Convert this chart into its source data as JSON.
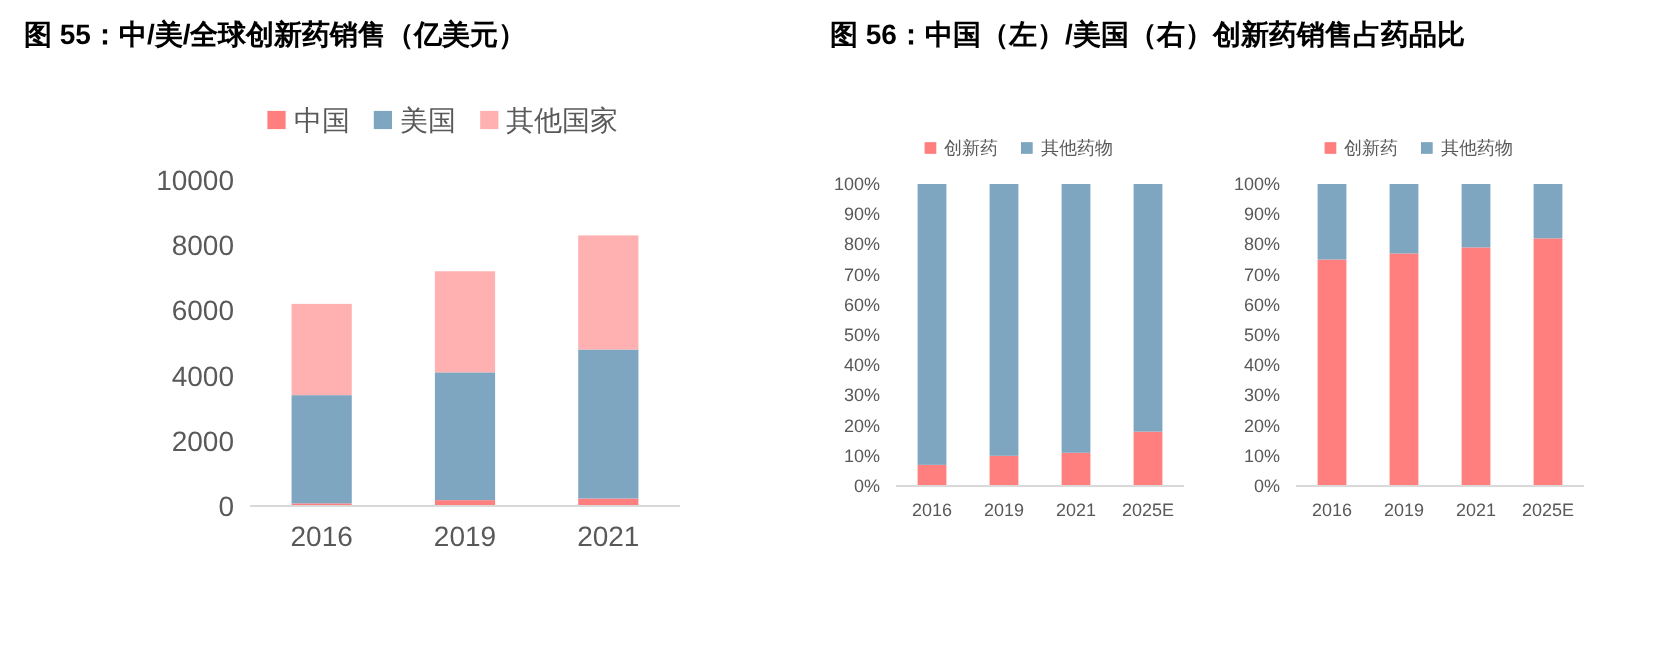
{
  "chart_data": [
    {
      "type": "bar",
      "title": "图 55：中/美/全球创新药销售（亿美元）",
      "categories": [
        "2016",
        "2019",
        "2021"
      ],
      "stacked": true,
      "legend": "top",
      "ylim": [
        0,
        10000
      ],
      "yticks": [
        0,
        2000,
        4000,
        6000,
        8000,
        10000
      ],
      "series": [
        {
          "name": "中国",
          "color": "#ff7f7f",
          "values": [
            80,
            180,
            230
          ]
        },
        {
          "name": "美国",
          "color": "#7fa6c0",
          "values": [
            3320,
            3920,
            4570
          ]
        },
        {
          "name": "其他国家",
          "color": "#ffb0b0",
          "values": [
            2800,
            3100,
            3500
          ]
        }
      ]
    },
    {
      "type": "bar",
      "title": "图 56：中国（左）/美国（右）创新药销售占药品比",
      "categories": [
        "2016",
        "2019",
        "2021",
        "2025E"
      ],
      "stacked": true,
      "legend": "top",
      "ylim": [
        0,
        100
      ],
      "yticks": [
        {
          "value": 0,
          "label": "0%"
        },
        {
          "value": 10,
          "label": "10%"
        },
        {
          "value": 20,
          "label": "20%"
        },
        {
          "value": 30,
          "label": "30%"
        },
        {
          "value": 40,
          "label": "40%"
        },
        {
          "value": 50,
          "label": "50%"
        },
        {
          "value": 60,
          "label": "60%"
        },
        {
          "value": 70,
          "label": "70%"
        },
        {
          "value": 80,
          "label": "80%"
        },
        {
          "value": 90,
          "label": "90%"
        },
        {
          "value": 100,
          "label": "100%"
        }
      ],
      "series": [
        {
          "name": "创新药",
          "color": "#ff7f7f",
          "values": [
            7,
            10,
            11,
            18
          ]
        },
        {
          "name": "其他药物",
          "color": "#7fa6c0",
          "values": [
            93,
            90,
            89,
            82
          ]
        }
      ]
    },
    {
      "type": "bar",
      "categories": [
        "2016",
        "2019",
        "2021",
        "2025E"
      ],
      "stacked": true,
      "legend": "top",
      "ylim": [
        0,
        100
      ],
      "yticks": [
        {
          "value": 0,
          "label": "0%"
        },
        {
          "value": 10,
          "label": "10%"
        },
        {
          "value": 20,
          "label": "20%"
        },
        {
          "value": 30,
          "label": "30%"
        },
        {
          "value": 40,
          "label": "40%"
        },
        {
          "value": 50,
          "label": "50%"
        },
        {
          "value": 60,
          "label": "60%"
        },
        {
          "value": 70,
          "label": "70%"
        },
        {
          "value": 80,
          "label": "80%"
        },
        {
          "value": 90,
          "label": "90%"
        },
        {
          "value": 100,
          "label": "100%"
        }
      ],
      "series": [
        {
          "name": "创新药",
          "color": "#ff7f7f",
          "values": [
            75,
            77,
            79,
            82
          ]
        },
        {
          "name": "其他药物",
          "color": "#7fa6c0",
          "values": [
            25,
            23,
            21,
            18
          ]
        }
      ]
    }
  ]
}
